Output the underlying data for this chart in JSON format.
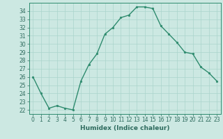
{
  "xlabel": "Humidex (Indice chaleur)",
  "x": [
    0,
    1,
    2,
    3,
    4,
    5,
    6,
    7,
    8,
    9,
    10,
    11,
    12,
    13,
    14,
    15,
    16,
    17,
    18,
    19,
    20,
    21,
    22,
    23
  ],
  "y": [
    26,
    24,
    22.2,
    22.5,
    22.2,
    22,
    25.5,
    27.5,
    28.8,
    31.2,
    32,
    33.2,
    33.5,
    34.5,
    34.5,
    34.3,
    32.2,
    31.2,
    30.2,
    29.0,
    28.8,
    27.2,
    26.5,
    25.5
  ],
  "line_color": "#2e8b6e",
  "marker_size": 1.8,
  "line_width": 1.0,
  "bg_color": "#cce8e2",
  "grid_color": "#aad4cc",
  "tick_label_color": "#2e6b5e",
  "spine_color": "#2e8b6e",
  "ylim": [
    21.5,
    35.0
  ],
  "yticks": [
    22,
    23,
    24,
    25,
    26,
    27,
    28,
    29,
    30,
    31,
    32,
    33,
    34
  ],
  "xticks": [
    0,
    1,
    2,
    3,
    4,
    5,
    6,
    7,
    8,
    9,
    10,
    11,
    12,
    13,
    14,
    15,
    16,
    17,
    18,
    19,
    20,
    21,
    22,
    23
  ],
  "xlabel_fontsize": 6.5,
  "tick_fontsize": 5.5
}
